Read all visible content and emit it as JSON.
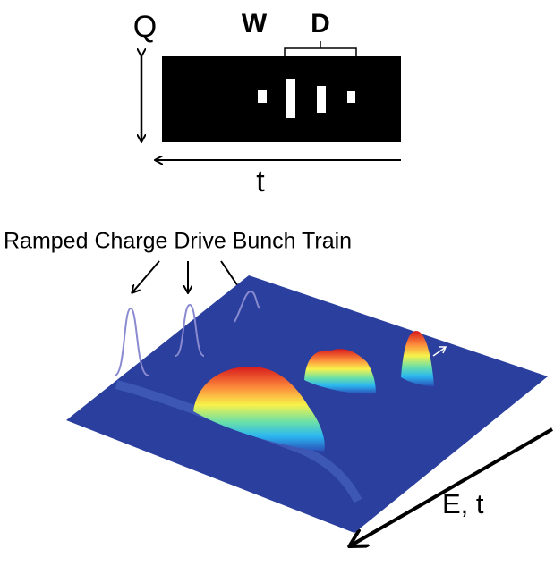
{
  "schematic": {
    "q_label": "Q",
    "w_label": "W",
    "d_label": "D",
    "t_label": "t"
  },
  "surface_plot": {
    "title": "Ramped Charge Drive Bunch Train",
    "axis_label": "E, t"
  }
}
